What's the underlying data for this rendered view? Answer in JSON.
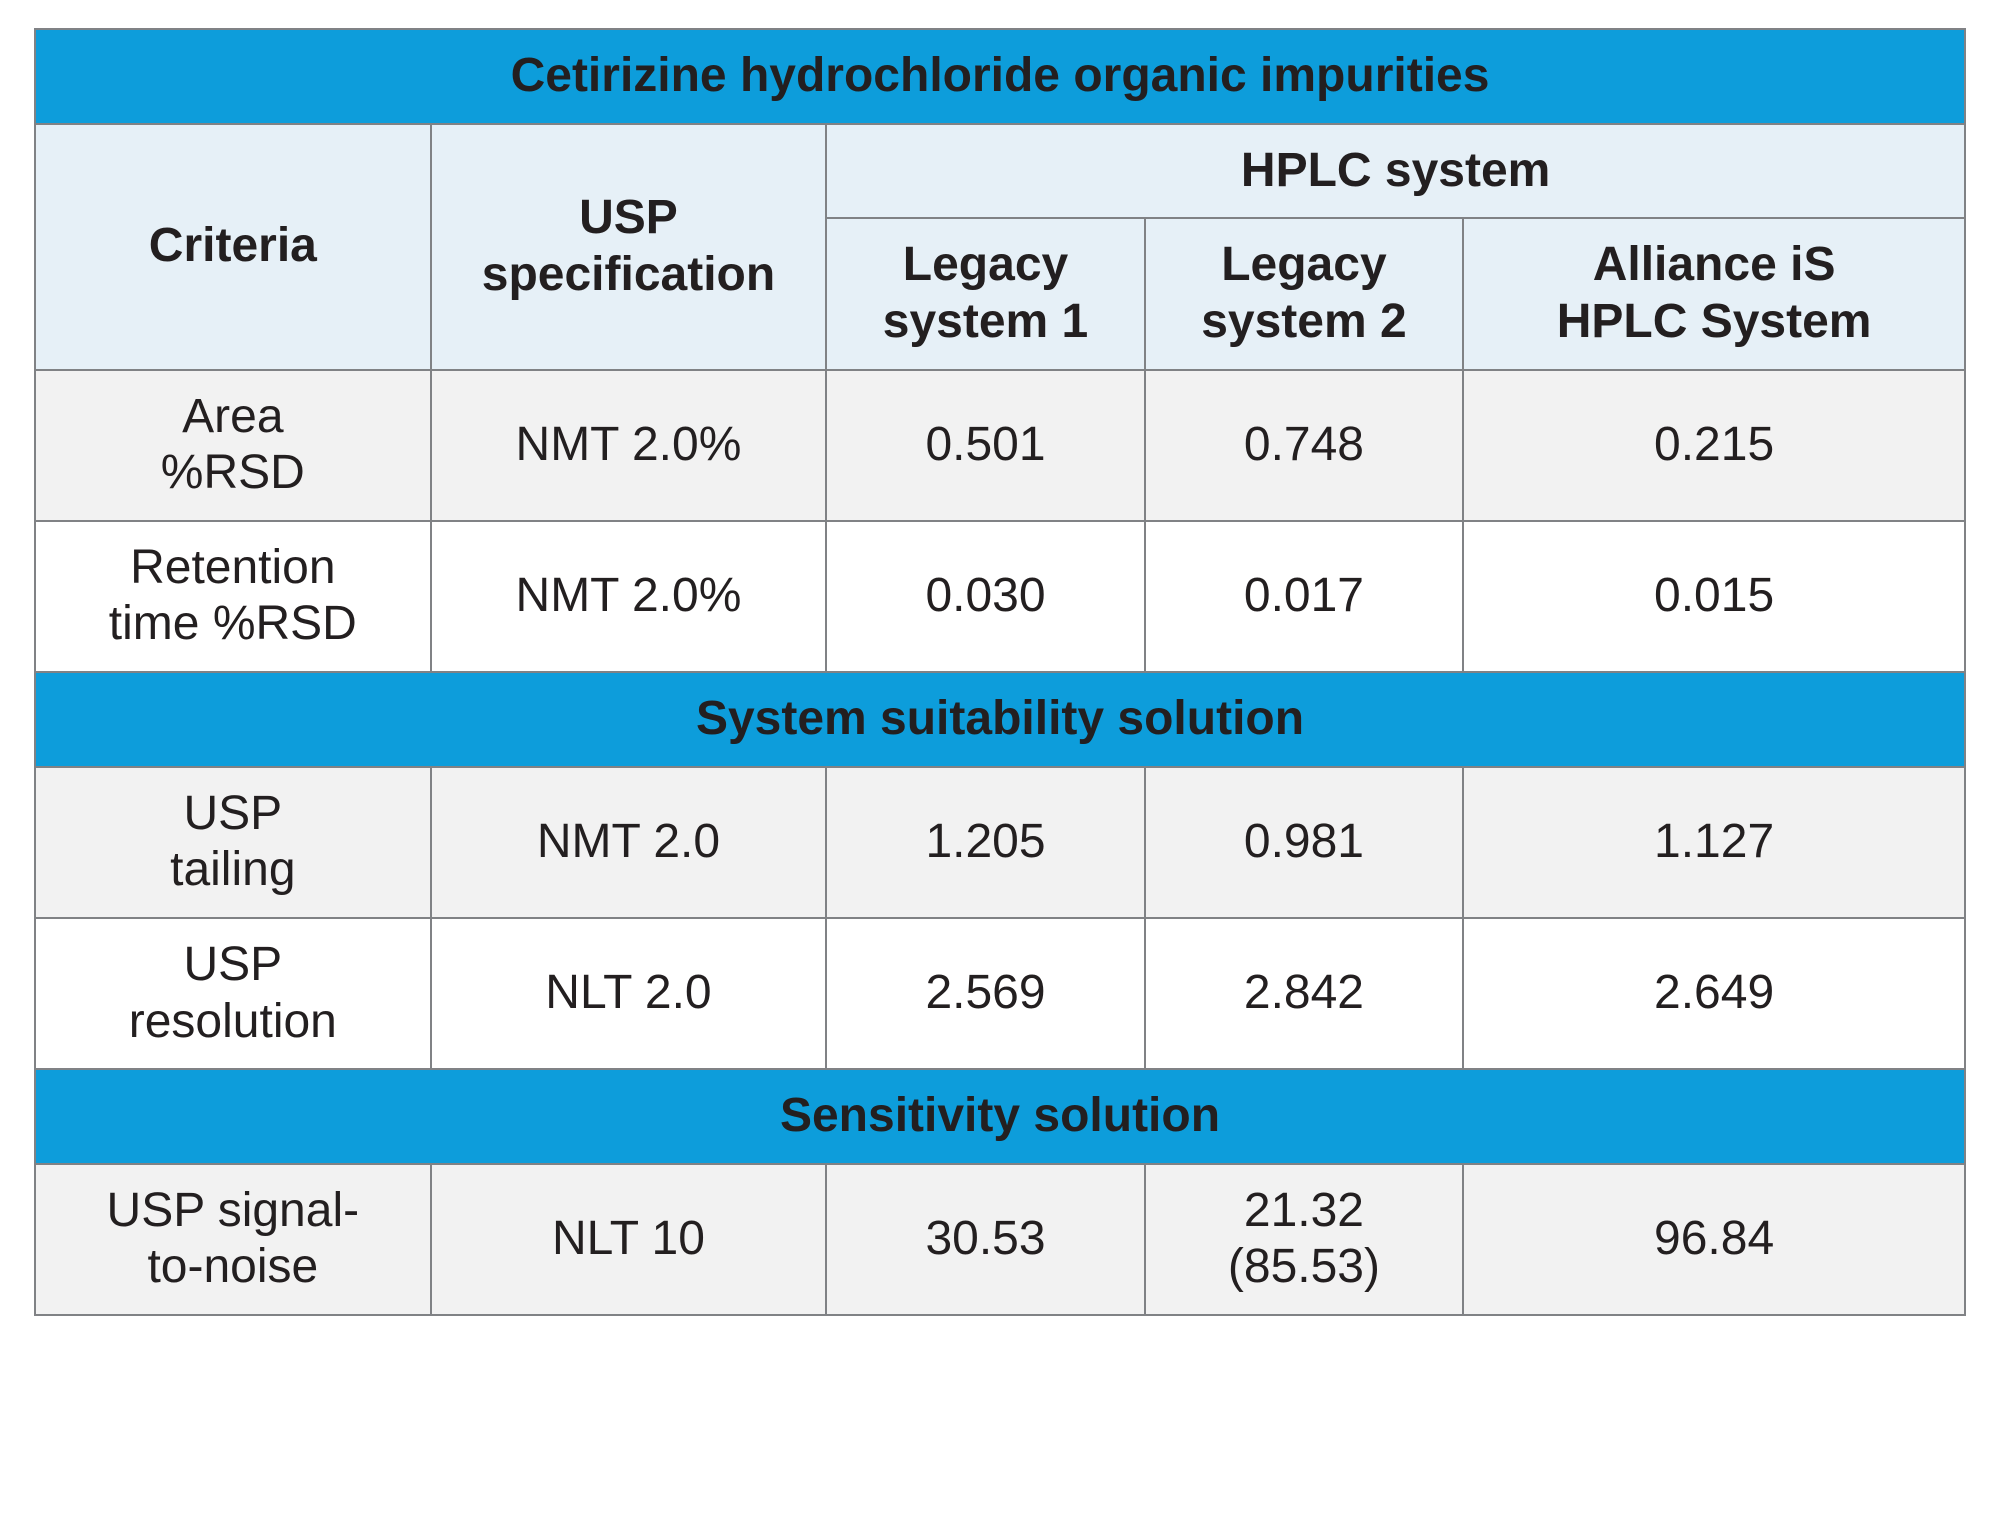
{
  "table": {
    "type": "table",
    "border_color": "#808285",
    "banner_bg": "#0d9ddb",
    "banner_fg": "#ffffff",
    "header_bg": "#e6f0f7",
    "shade_bg": "#f2f2f2",
    "noshade_bg": "#ffffff",
    "text_color": "#231f20",
    "title_fontsize": 52,
    "header_fontsize": 50,
    "cell_fontsize": 48,
    "col_widths_pct": [
      20.5,
      20.5,
      16.5,
      16.5,
      26.0
    ],
    "section1": {
      "title": "Cetirizine hydrochloride organic impurities",
      "headers": {
        "criteria": "Criteria",
        "usp_spec": "USP specification",
        "system_group": "HPLC system",
        "sys1": "Legacy system 1",
        "sys2": "Legacy system 2",
        "sys3": "Alliance iS HPLC System"
      },
      "rows": [
        {
          "criteria_l1": "Area",
          "criteria_l2": "%RSD",
          "spec": "NMT 2.0%",
          "v1": "0.501",
          "v2": "0.748",
          "v3": "0.215",
          "shade": true
        },
        {
          "criteria_l1": "Retention",
          "criteria_l2": "time %RSD",
          "spec": "NMT 2.0%",
          "v1": "0.030",
          "v2": "0.017",
          "v3": "0.015",
          "shade": false
        }
      ]
    },
    "section2": {
      "title": "System suitability solution",
      "rows": [
        {
          "criteria_l1": "USP",
          "criteria_l2": "tailing",
          "spec": "NMT 2.0",
          "v1": "1.205",
          "v2": "0.981",
          "v3": "1.127",
          "shade": true
        },
        {
          "criteria_l1": "USP",
          "criteria_l2": "resolution",
          "spec": "NLT 2.0",
          "v1": "2.569",
          "v2": "2.842",
          "v3": "2.649",
          "shade": false
        }
      ]
    },
    "section3": {
      "title": "Sensitivity solution",
      "rows": [
        {
          "criteria_l1": "USP signal-",
          "criteria_l2": "to-noise",
          "spec": "NLT 10",
          "v1": "30.53",
          "v2_l1": "21.32",
          "v2_l2": "(85.53)",
          "v3": "96.84",
          "shade": true
        }
      ]
    }
  }
}
